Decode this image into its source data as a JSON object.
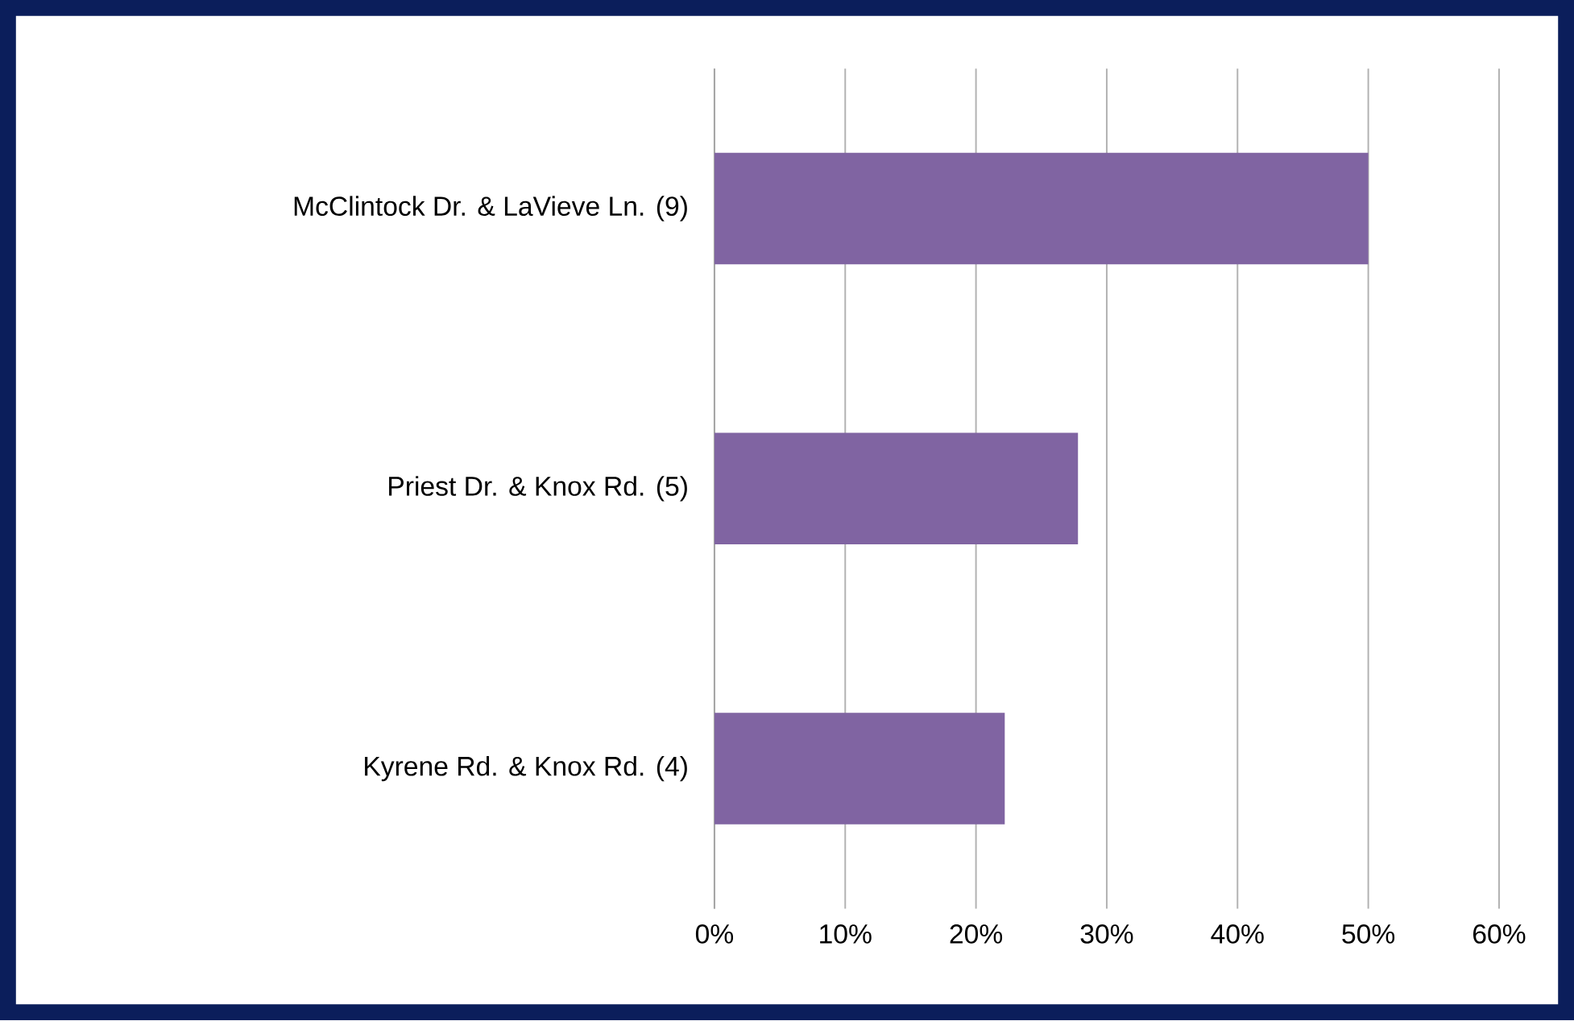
{
  "chart_data": {
    "type": "bar",
    "orientation": "horizontal",
    "categories": [
      "McClintock Dr. & LaVieve Ln. (9)",
      "Priest Dr. & Knox Rd. (5)",
      "Kyrene Rd. & Knox Rd. (4)"
    ],
    "values": [
      50,
      27.8,
      22.2
    ],
    "color": "#8064a2",
    "xlim": [
      0,
      60
    ],
    "xticks": [
      {
        "value": 0,
        "label": "0%"
      },
      {
        "value": 10,
        "label": "10%"
      },
      {
        "value": 20,
        "label": "20%"
      },
      {
        "value": 30,
        "label": "30%"
      },
      {
        "value": 40,
        "label": "40%"
      },
      {
        "value": 50,
        "label": "50%"
      },
      {
        "value": 60,
        "label": "60%"
      }
    ],
    "grid": "x"
  }
}
